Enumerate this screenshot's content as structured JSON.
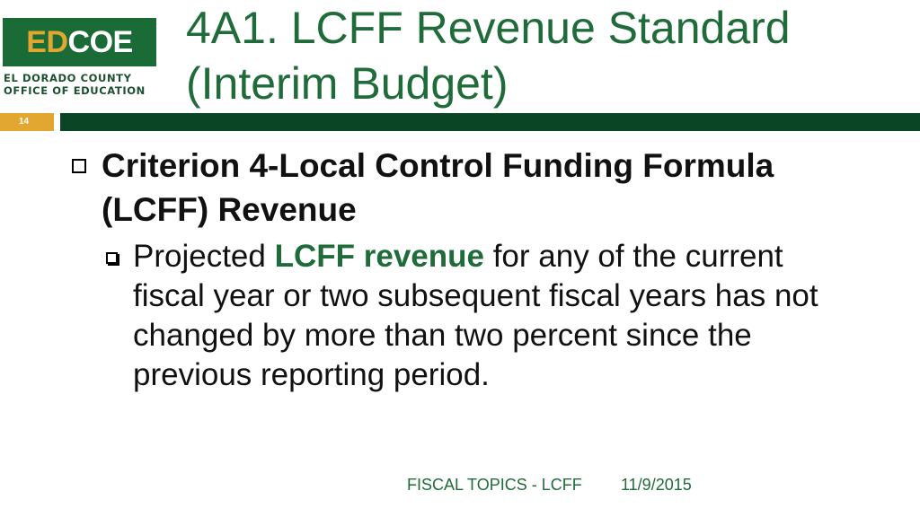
{
  "logo": {
    "part1": "ED",
    "part2": "COE",
    "org_line1": "EL DORADO COUNTY",
    "org_line2": "OFFICE OF EDUCATION"
  },
  "title": {
    "line1": "4A1. LCFF Revenue Standard",
    "line2": "(Interim Budget)"
  },
  "page_number": "14",
  "bullet1": {
    "line1": "Criterion 4-Local Control Funding Formula",
    "line2": "(LCFF) Revenue"
  },
  "bullet2": {
    "prefix": "Projected ",
    "highlight": "LCFF revenue",
    "rest_line1": " for any of the current",
    "line2": "fiscal year or two subsequent fiscal years has not",
    "line3": "changed by more than two percent since the",
    "line4": "previous reporting period."
  },
  "footer": {
    "topic": "FISCAL TOPICS - LCFF",
    "date": "11/9/2015"
  },
  "colors": {
    "brand_green": "#1f6b3a",
    "dark_green_bar": "#0a4626",
    "logo_green": "#1b6b37",
    "gold": "#e1a730"
  }
}
